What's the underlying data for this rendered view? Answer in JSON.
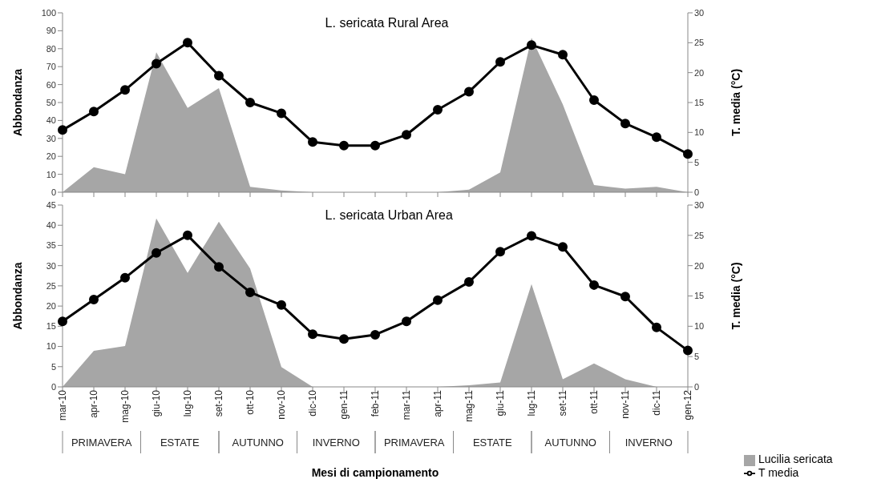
{
  "chart_data": [
    {
      "type": "area",
      "title": "L. sericata Rural Area",
      "ylabel": "Abbondanza",
      "y2label": "T. media (°C)",
      "categories": [
        null,
        null,
        null,
        null,
        null,
        null,
        null,
        null,
        null,
        null,
        null,
        null,
        null,
        null,
        null,
        null,
        null,
        null,
        null,
        null,
        null
      ],
      "series": [
        {
          "color": "#a6a6a6",
          "values": [
            0,
            14,
            10,
            78,
            47,
            58,
            3,
            1,
            0,
            0,
            0,
            0,
            0,
            1.5,
            11,
            86,
            49,
            4,
            2,
            3,
            0
          ]
        },
        {
          "type": "line",
          "axis": "y2",
          "marker": "circle",
          "color": "#000000",
          "values": [
            10.4,
            13.5,
            17.1,
            21.5,
            25,
            19.5,
            15,
            13.2,
            8.4,
            7.8,
            7.8,
            9.6,
            13.8,
            16.8,
            21.8,
            24.6,
            23,
            15.4,
            11.5,
            9.2,
            6.4
          ]
        }
      ],
      "ylim": [
        0,
        100
      ],
      "yticks": [
        0,
        10,
        20,
        30,
        40,
        50,
        60,
        70,
        80,
        90,
        100
      ],
      "y2lim": [
        0,
        30
      ],
      "y2ticks": [
        0,
        5,
        10,
        15,
        20,
        25,
        30
      ],
      "grid": false,
      "legend": false
    },
    {
      "type": "area",
      "title": "L. sericata Urban Area",
      "ylabel": "Abbondanza",
      "y2label": "T. media (°C)",
      "xlabel": "Mesi di campionamento",
      "categories": [
        "mar-10",
        "apr-10",
        "mag-10",
        "giu-10",
        "lug-10",
        "set-10",
        "ott-10",
        "nov-10",
        "dic-10",
        "gen-11",
        "feb-11",
        "mar-11",
        "apr-11",
        "mag-11",
        "giu-11",
        "lug-11",
        "set-11",
        "ott-11",
        "nov-11",
        "dic-11",
        "gen-12"
      ],
      "series": [
        {
          "name": "Lucilia sericata",
          "color": "#a6a6a6",
          "values": [
            0,
            8.9,
            10.1,
            41.7,
            28.2,
            40.9,
            29.3,
            4.9,
            0,
            0,
            0,
            0,
            0,
            0.4,
            1.1,
            25.4,
            1.9,
            5.8,
            1.9,
            0,
            0
          ]
        },
        {
          "type": "line",
          "name": "T media",
          "axis": "y2",
          "marker": "circle",
          "color": "#000000",
          "values": [
            10.8,
            14.4,
            18,
            22.1,
            25,
            19.8,
            15.6,
            13.5,
            8.7,
            7.9,
            8.6,
            10.8,
            14.3,
            17.3,
            22.3,
            24.9,
            23.1,
            16.8,
            14.9,
            9.8,
            6
          ]
        }
      ],
      "ylim": [
        0,
        45
      ],
      "yticks": [
        0,
        5,
        10,
        15,
        20,
        25,
        30,
        35,
        40,
        45
      ],
      "y2lim": [
        0,
        30
      ],
      "y2ticks": [
        0,
        5,
        10,
        15,
        20,
        25,
        30
      ],
      "grid": false,
      "legend": "bottom right",
      "annotations": [
        "PRIMAVERA",
        "ESTATE",
        "AUTUNNO",
        "INVERNO",
        "PRIMAVERA",
        "ESTATE",
        "AUTUNNO",
        "INVERNO"
      ]
    }
  ]
}
